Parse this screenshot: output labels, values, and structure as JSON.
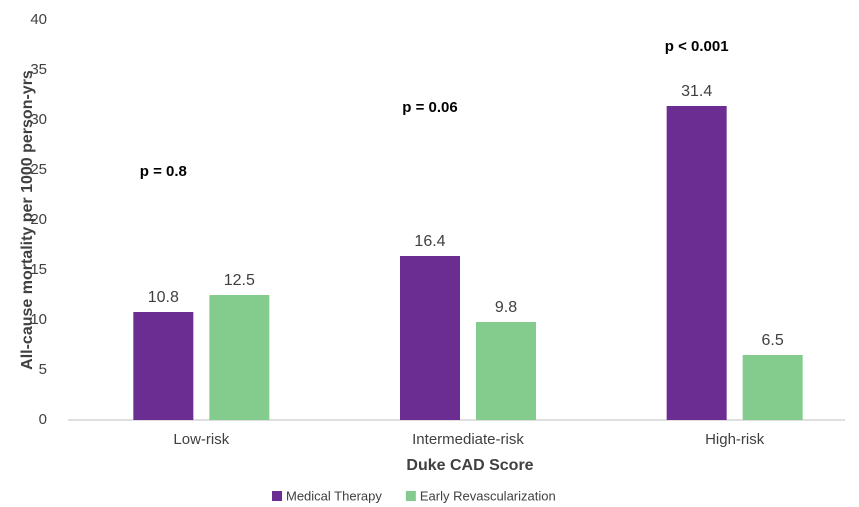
{
  "chart_data": {
    "type": "grouped-bar",
    "x_label": "Duke CAD Score",
    "y_label": "All-cause mortality  per 1000 person-yrs",
    "categories": [
      "Low-risk",
      "Intermediate-risk",
      "High-risk"
    ],
    "series": [
      {
        "name": "Medical Therapy",
        "color": "#6b2d91",
        "values": [
          10.8,
          16.4,
          31.4
        ]
      },
      {
        "name": "Early Revascularization",
        "color": "#84cc8e",
        "values": [
          12.5,
          9.8,
          6.5
        ]
      }
    ],
    "annotations": [
      "p = 0.8",
      "p = 0.06",
      "p < 0.001"
    ],
    "ylim": [
      0,
      40
    ],
    "yticks": [
      0,
      5,
      10,
      15,
      20,
      25,
      30,
      35,
      40
    ],
    "grid": false,
    "legend": "bottom"
  }
}
